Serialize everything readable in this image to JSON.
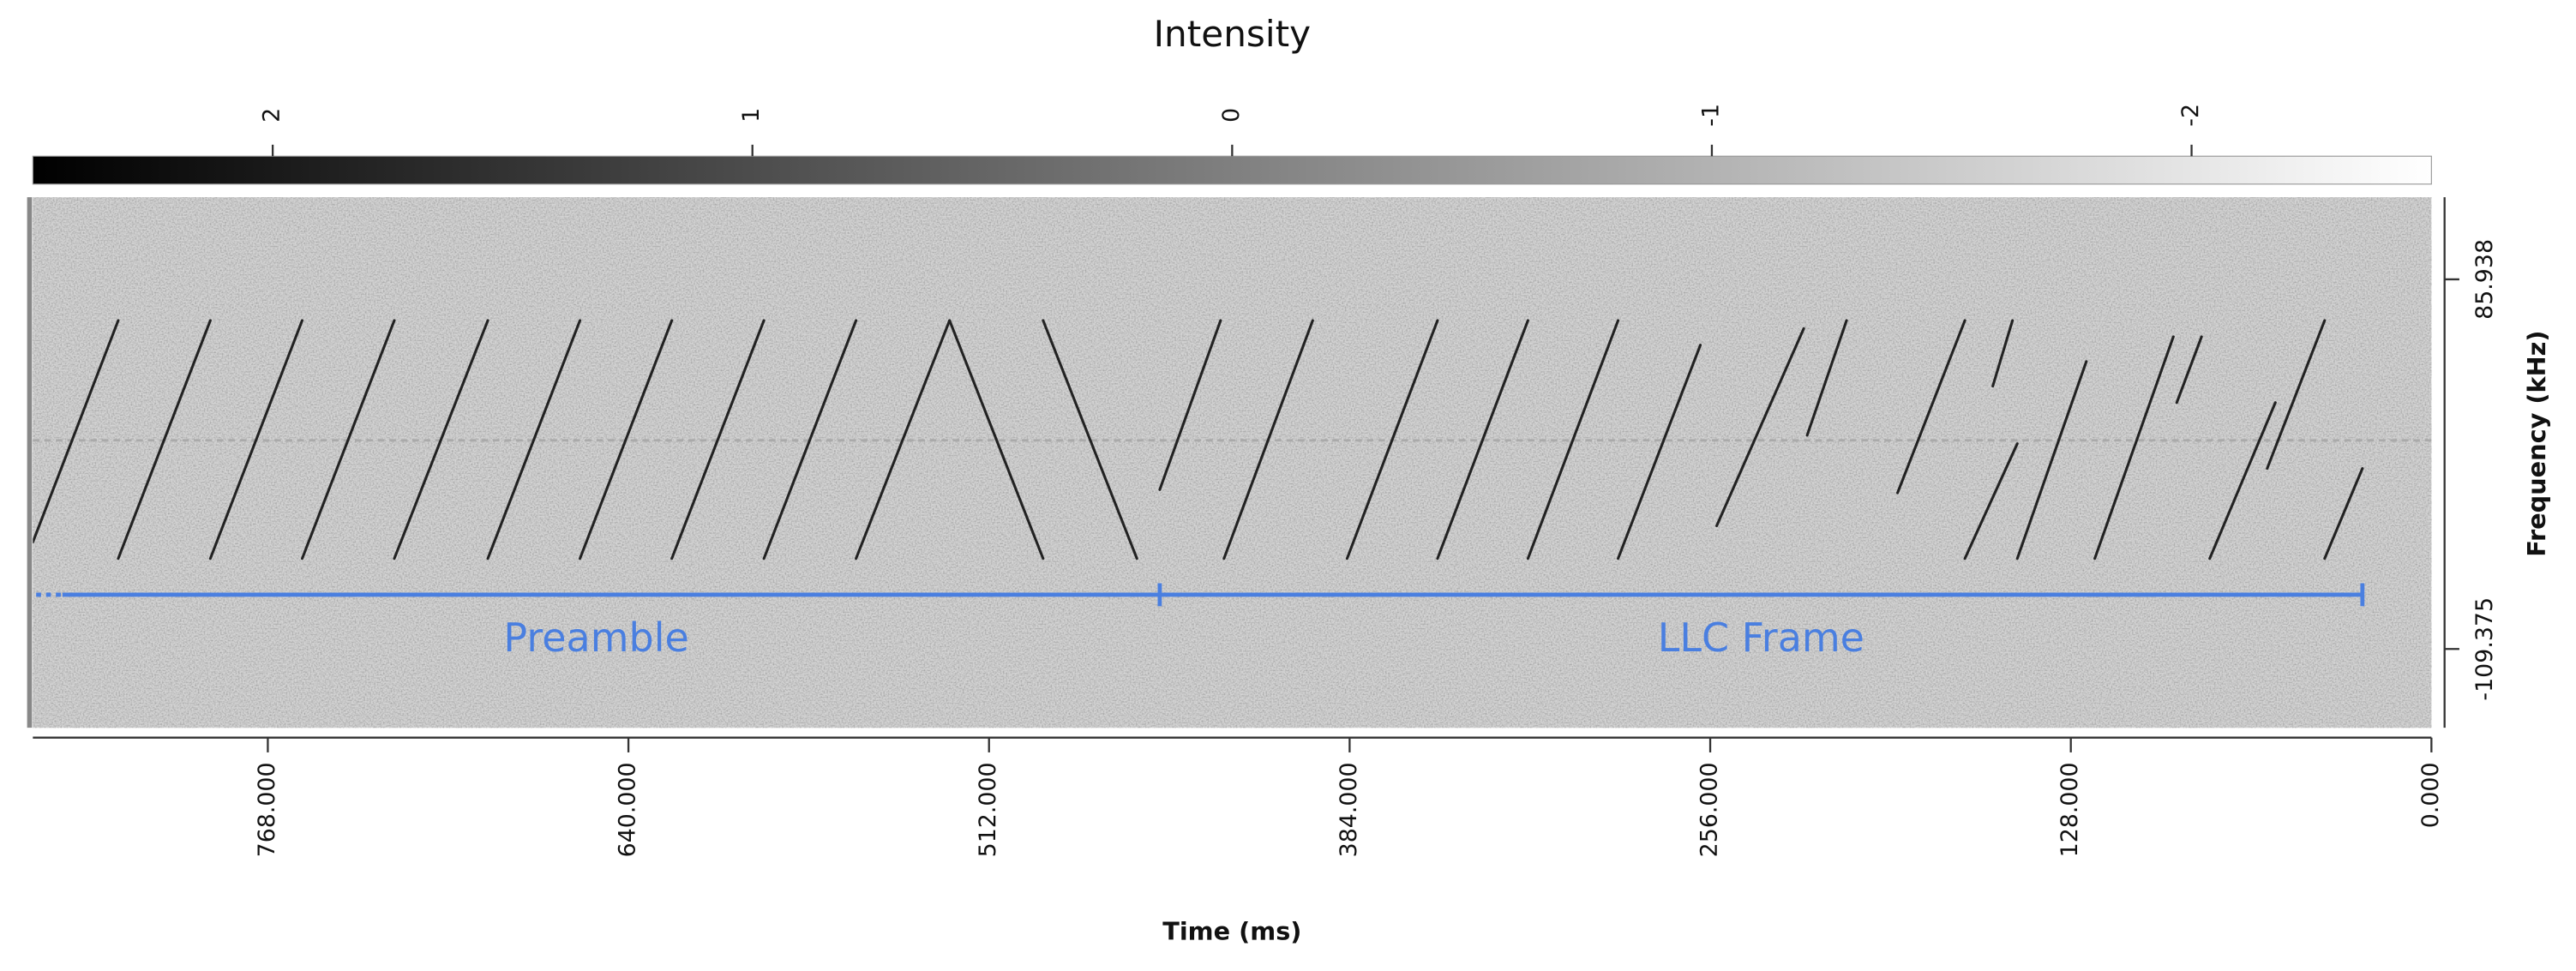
{
  "chart_data": {
    "type": "spectrogram",
    "title": "Intensity",
    "colorbar": {
      "clim": [
        2.5,
        -2.5
      ],
      "ticks": [
        2,
        1,
        0,
        -1,
        -2
      ],
      "colors": [
        "#000000",
        "#ffffff"
      ]
    },
    "x_label": "Time (ms)",
    "y_label": "Frequency (kHz)",
    "xlim": [
      851.4,
      0
    ],
    "xticks": [
      {
        "value": 768,
        "label": "768.000"
      },
      {
        "value": 640,
        "label": "640.000"
      },
      {
        "value": 512,
        "label": "512.000"
      },
      {
        "value": 384,
        "label": "384.000"
      },
      {
        "value": 256,
        "label": "256.000"
      },
      {
        "value": 128,
        "label": "128.000"
      },
      {
        "value": 0,
        "label": "0.000"
      }
    ],
    "ylim": [
      -151,
      129.3
    ],
    "yticks": [
      85.938,
      -109.375
    ],
    "chirp_color": "#222222",
    "chirps": [
      {
        "t": [
          851.4,
          821.1
        ],
        "f": [
          -52.9,
          64.2
        ]
      },
      {
        "t": [
          821.1,
          788.4
        ],
        "f": [
          -61.6,
          64.2
        ]
      },
      {
        "t": [
          788.4,
          755.8
        ],
        "f": [
          -61.6,
          64.2
        ]
      },
      {
        "t": [
          755.8,
          723.1
        ],
        "f": [
          -61.6,
          64.2
        ]
      },
      {
        "t": [
          723.1,
          689.9
        ],
        "f": [
          -61.6,
          64.2
        ]
      },
      {
        "t": [
          689.9,
          657.2
        ],
        "f": [
          -61.6,
          64.2
        ]
      },
      {
        "t": [
          657.2,
          624.6
        ],
        "f": [
          -61.6,
          64.2
        ]
      },
      {
        "t": [
          624.6,
          591.9
        ],
        "f": [
          -61.6,
          64.2
        ]
      },
      {
        "t": [
          591.9,
          559.2
        ],
        "f": [
          -61.6,
          64.2
        ]
      },
      {
        "t": [
          559.2,
          526.0
        ],
        "f": [
          -61.6,
          64.2
        ]
      },
      {
        "t": [
          526.0,
          492.8
        ],
        "f": [
          64.2,
          -61.6
        ]
      },
      {
        "t": [
          492.8,
          459.5
        ],
        "f": [
          64.2,
          -61.6
        ]
      },
      {
        "t": [
          451.4,
          429.8
        ],
        "f": [
          -25.2,
          64.2
        ]
      },
      {
        "t": [
          428.6,
          397.1
        ],
        "f": [
          -61.6,
          64.2
        ]
      },
      {
        "t": [
          384.9,
          352.8
        ],
        "f": [
          -61.6,
          64.2
        ]
      },
      {
        "t": [
          352.8,
          320.7
        ],
        "f": [
          -61.6,
          64.2
        ]
      },
      {
        "t": [
          320.7,
          288.7
        ],
        "f": [
          -61.6,
          64.2
        ]
      },
      {
        "t": [
          288.7,
          259.5
        ],
        "f": [
          -61.6,
          51.2
        ]
      },
      {
        "t": [
          253.7,
          222.8
        ],
        "f": [
          -44.3,
          59.9
        ]
      },
      {
        "t": [
          221.6,
          207.6
        ],
        "f": [
          3.5,
          64.2
        ]
      },
      {
        "t": [
          189.5,
          165.6
        ],
        "f": [
          -26.9,
          64.2
        ]
      },
      {
        "t": [
          165.6,
          147.0
        ],
        "f": [
          -61.6,
          -0.9
        ]
      },
      {
        "t": [
          155.7,
          148.7
        ],
        "f": [
          29.5,
          64.2
        ]
      },
      {
        "t": [
          147.0,
          122.5
        ],
        "f": [
          -61.6,
          42.5
        ]
      },
      {
        "t": [
          119.5,
          91.6
        ],
        "f": [
          -61.6,
          55.6
        ]
      },
      {
        "t": [
          90.4,
          81.6
        ],
        "f": [
          20.8,
          55.6
        ]
      },
      {
        "t": [
          78.7,
          55.4
        ],
        "f": [
          -61.6,
          20.8
        ]
      },
      {
        "t": [
          58.3,
          37.9
        ],
        "f": [
          -14,
          64.2
        ]
      },
      {
        "t": [
          37.9,
          24.5
        ],
        "f": [
          -61.6,
          -14
        ]
      }
    ],
    "annotation_color": "#4a7fe0",
    "annotations": [
      {
        "label": "Preamble",
        "t": [
          851.4,
          451.4
        ]
      },
      {
        "label": "LLC Frame",
        "t": [
          451.4,
          24.5
        ]
      }
    ]
  }
}
